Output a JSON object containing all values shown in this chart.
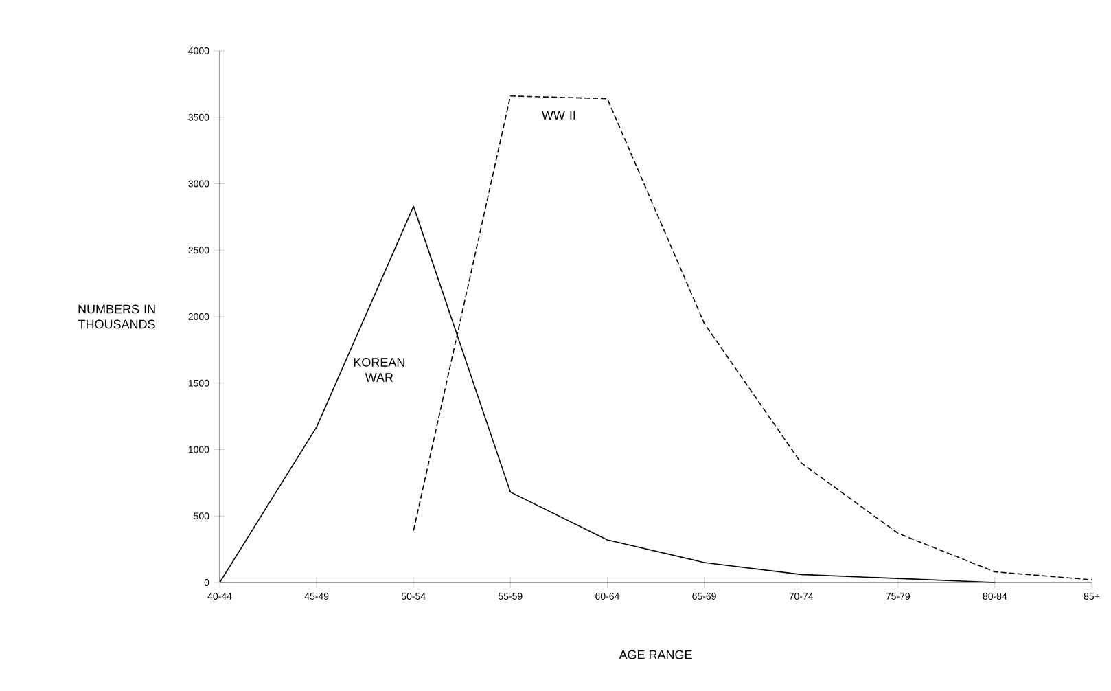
{
  "chart_data": {
    "type": "line",
    "xlabel": "AGE RANGE",
    "ylabel": "NUMBERS IN THOUSANDS",
    "categories": [
      "40-44",
      "45-49",
      "50-54",
      "55-59",
      "60-64",
      "65-69",
      "70-74",
      "75-79",
      "80-84",
      "85+"
    ],
    "series": [
      {
        "name": "KOREAN WAR",
        "color": "#000000",
        "line_style": "solid",
        "values": [
          0,
          1170,
          2830,
          680,
          320,
          150,
          60,
          30,
          0,
          null
        ]
      },
      {
        "name": "WW II",
        "color": "#000000",
        "line_style": "dashed",
        "values": [
          null,
          null,
          390,
          3660,
          3640,
          1950,
          900,
          370,
          80,
          20
        ]
      }
    ],
    "ylim": [
      0,
      4000
    ],
    "yticks": [
      0,
      500,
      1000,
      1500,
      2000,
      2500,
      3000,
      3500,
      4000
    ],
    "grid": false,
    "marker": "none"
  }
}
